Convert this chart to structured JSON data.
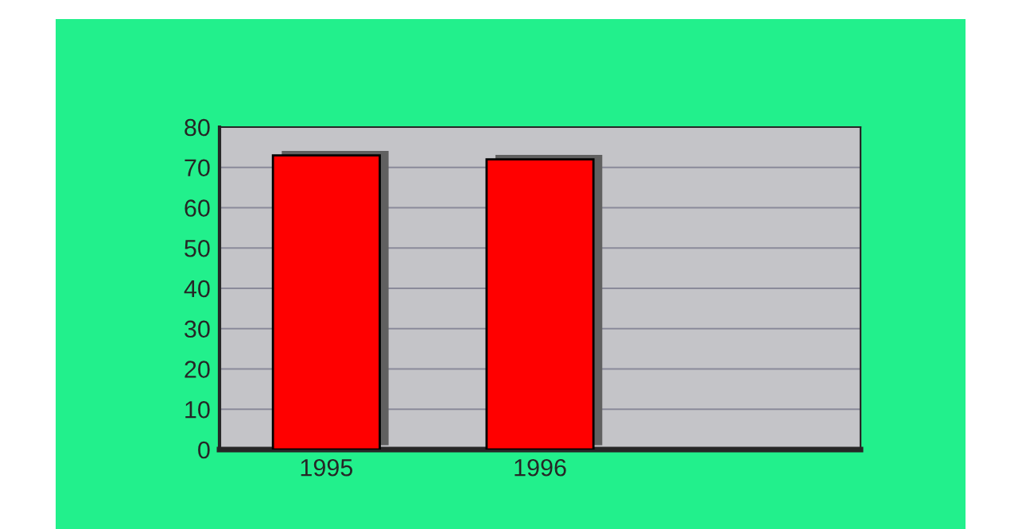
{
  "chart_data": {
    "type": "bar",
    "categories": [
      "1995",
      "1996",
      null
    ],
    "values": [
      73,
      72,
      null
    ],
    "color": "#ff0000",
    "ylim": [
      0,
      80
    ],
    "yticks": [
      0,
      10,
      20,
      30,
      40,
      50,
      60,
      70,
      80
    ],
    "grid": "y",
    "legend": false
  }
}
